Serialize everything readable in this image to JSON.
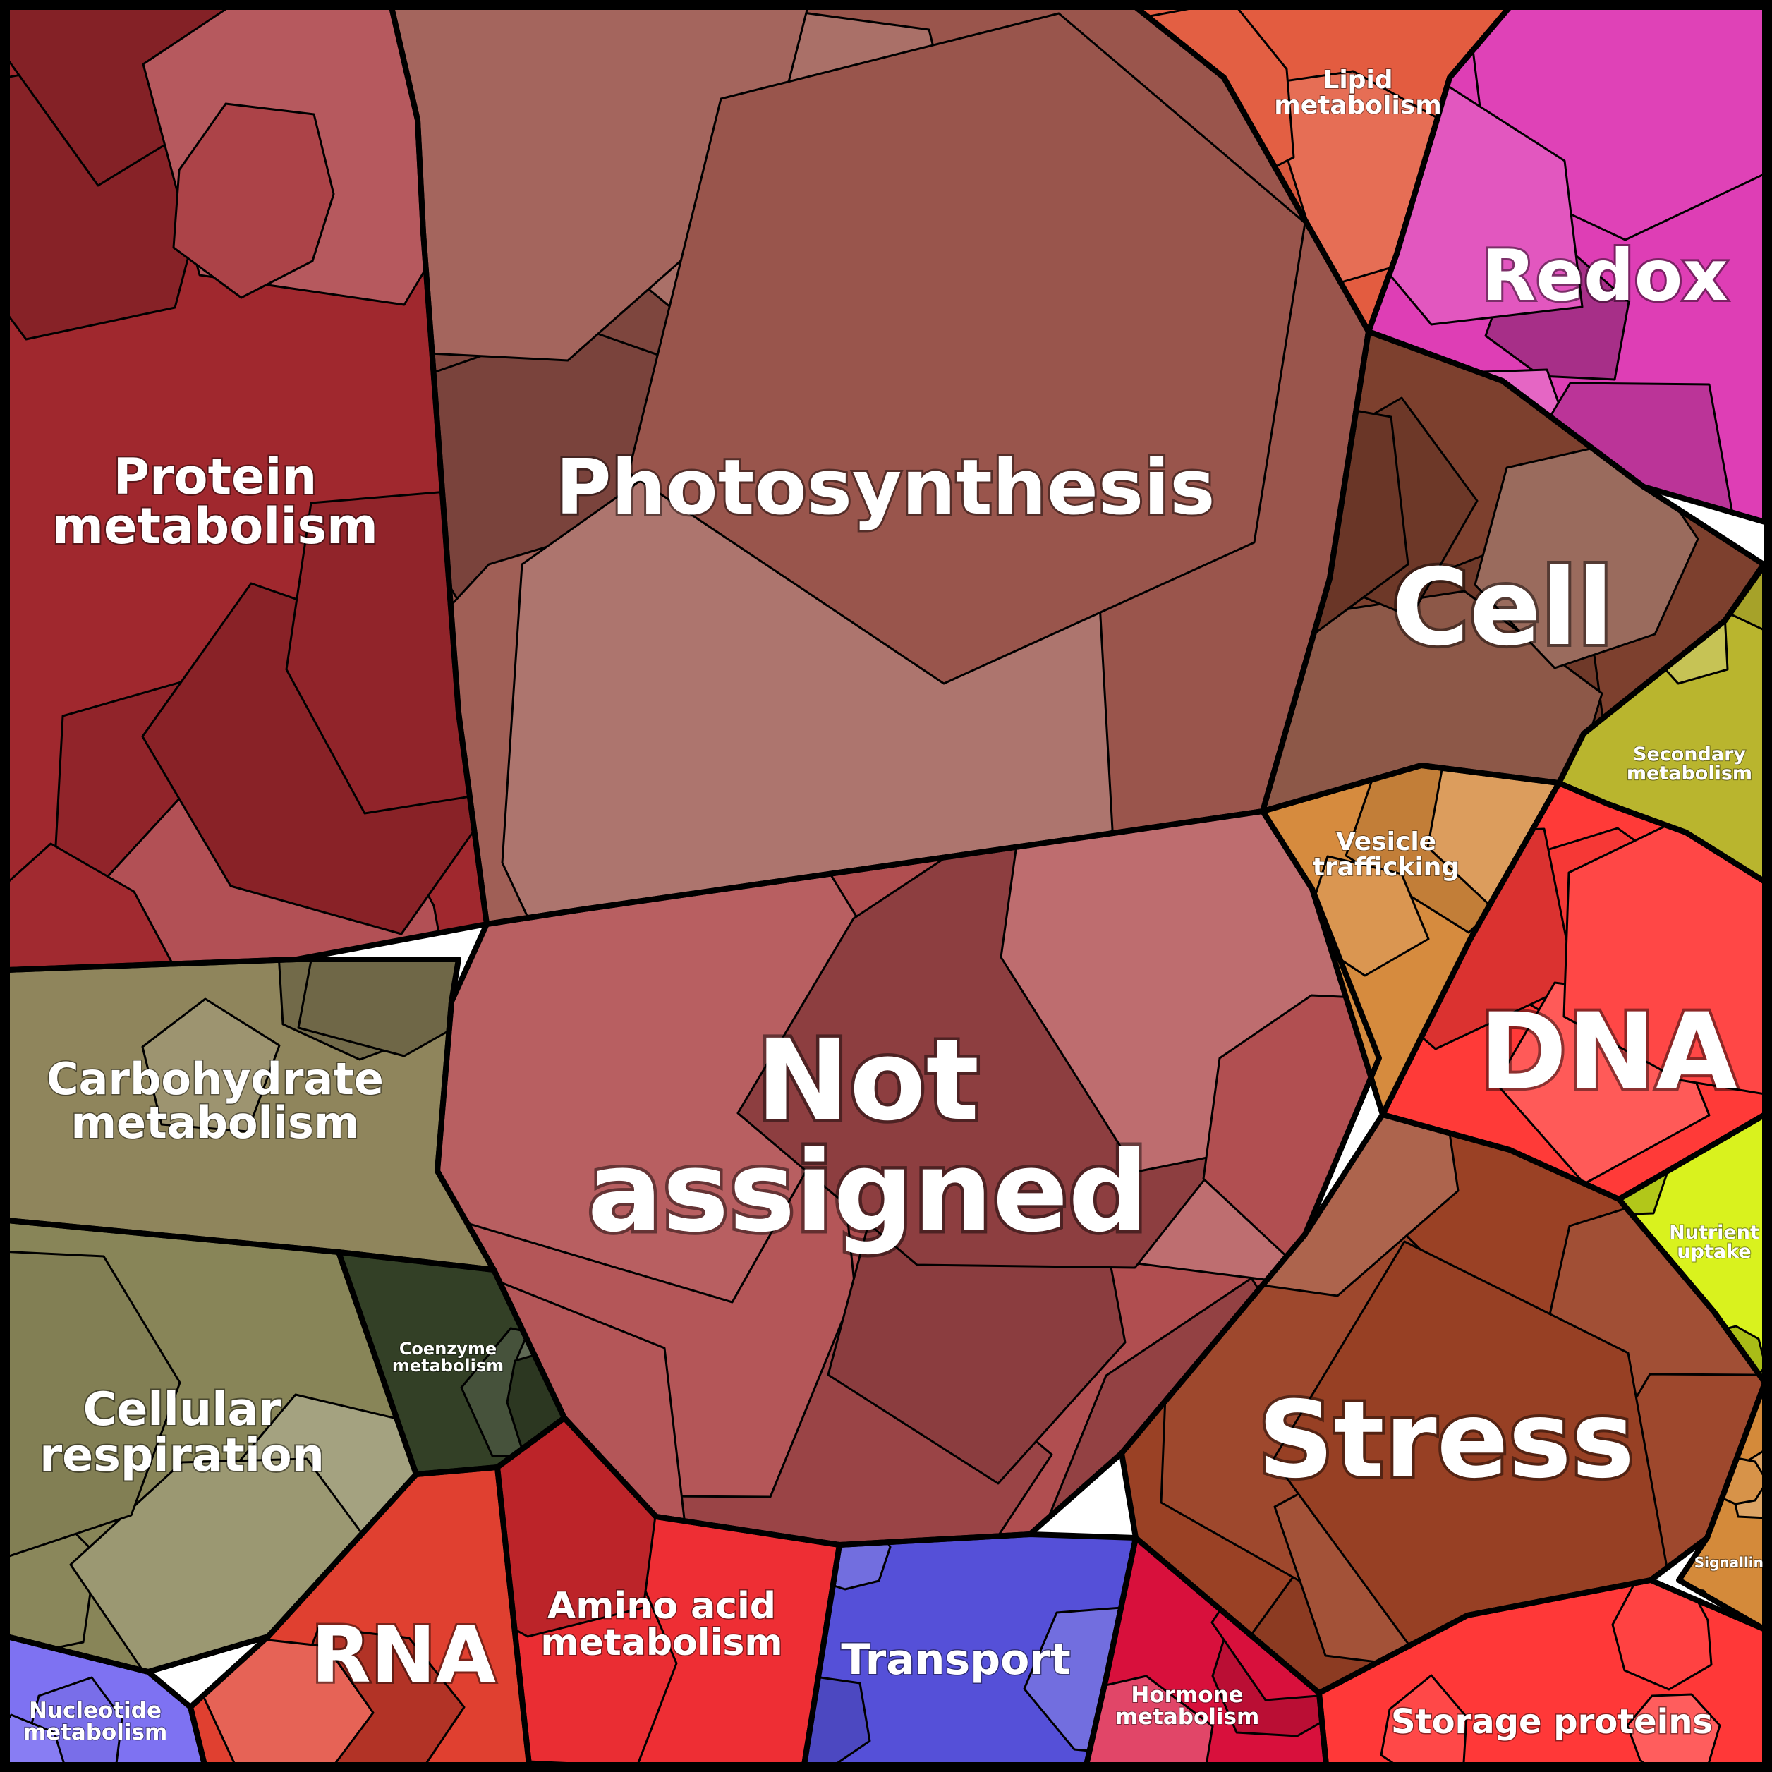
{
  "categories": [
    {
      "key": "photosynthesis",
      "label_lines": [
        "Photosynthesis"
      ],
      "color": "#9A554C"
    },
    {
      "key": "not-assigned",
      "label_lines": [
        "Not",
        "assigned"
      ],
      "color": "#B04E50"
    },
    {
      "key": "protein-metabolism",
      "label_lines": [
        "Protein",
        "metabolism"
      ],
      "color": "#A0282E"
    },
    {
      "key": "cell",
      "label_lines": [
        "Cell"
      ],
      "color": "#7D402E"
    },
    {
      "key": "redox",
      "label_lines": [
        "Redox"
      ],
      "color": "#DE3EB5"
    },
    {
      "key": "lipid-metabolism",
      "label_lines": [
        "Lipid",
        "metabolism"
      ],
      "color": "#E35C40"
    },
    {
      "key": "dna",
      "label_lines": [
        "DNA"
      ],
      "color": "#FF3A38"
    },
    {
      "key": "secondary-metabolism",
      "label_lines": [
        "Secondary",
        "metabolism"
      ],
      "color": "#B9B52E"
    },
    {
      "key": "vesicle-trafficking",
      "label_lines": [
        "Vesicle",
        "trafficking"
      ],
      "color": "#D68B3E"
    },
    {
      "key": "carbohydrate-metabolism",
      "label_lines": [
        "Carbohydrate",
        "metabolism"
      ],
      "color": "#8F855C"
    },
    {
      "key": "nutrient-uptake",
      "label_lines": [
        "Nutrient",
        "uptake"
      ],
      "color": "#D9F21E"
    },
    {
      "key": "cellular-respiration",
      "label_lines": [
        "Cellular",
        "respiration"
      ],
      "color": "#888558"
    },
    {
      "key": "coenzyme-metabolism",
      "label_lines": [
        "Coenzyme",
        "metabolism"
      ],
      "color": "#334026"
    },
    {
      "key": "stress",
      "label_lines": [
        "Stress"
      ],
      "color": "#9A4125"
    },
    {
      "key": "signalling",
      "label_lines": [
        "Signalling"
      ],
      "color": "#D48A3A"
    },
    {
      "key": "rna",
      "label_lines": [
        "RNA"
      ],
      "color": "#E04030"
    },
    {
      "key": "amino-acid-metabolism",
      "label_lines": [
        "Amino acid",
        "metabolism"
      ],
      "color": "#EE2E34"
    },
    {
      "key": "transport",
      "label_lines": [
        "Transport"
      ],
      "color": "#5550D8"
    },
    {
      "key": "hormone-metabolism",
      "label_lines": [
        "Hormone",
        "metabolism"
      ],
      "color": "#D8103C"
    },
    {
      "key": "storage-proteins",
      "label_lines": [
        "Storage proteins"
      ],
      "color": "#FF3838"
    },
    {
      "key": "nucleotide-metabolism",
      "label_lines": [
        "Nucleotide",
        "metabolism"
      ],
      "color": "#7E72F2"
    }
  ]
}
